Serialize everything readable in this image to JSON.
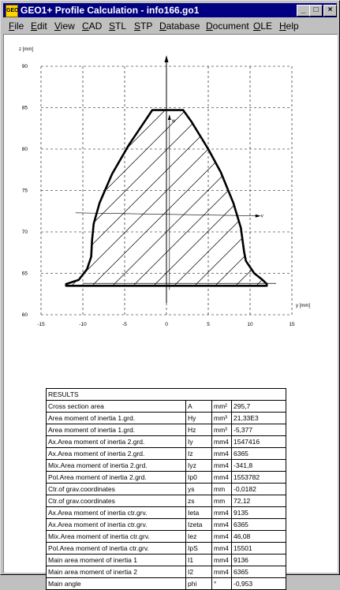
{
  "window": {
    "title": "GEO1+  Profile Calculation  -  info166.go1",
    "icon_text": "GEO",
    "buttons": {
      "minimize": "_",
      "maximize": "□",
      "close": "×"
    }
  },
  "menu": [
    {
      "label": "File",
      "u": "F",
      "rest": "ile"
    },
    {
      "label": "Edit",
      "u": "E",
      "rest": "dit"
    },
    {
      "label": "View",
      "u": "V",
      "rest": "iew"
    },
    {
      "label": "CAD",
      "u": "C",
      "rest": "AD"
    },
    {
      "label": "STL",
      "u": "S",
      "rest": "TL"
    },
    {
      "label": "STP",
      "u": "S",
      "rest": "TP"
    },
    {
      "label": "Database",
      "u": "D",
      "rest": "atabase"
    },
    {
      "label": "Document",
      "u": "D",
      "rest": "ocument"
    },
    {
      "label": "OLE",
      "u": "O",
      "rest": "LE"
    },
    {
      "label": "Help",
      "u": "H",
      "rest": "elp"
    }
  ],
  "plot": {
    "z_axis_label": "z [mm]",
    "y_axis_label": "y [mm]",
    "w_label": "w",
    "v_label": "v",
    "y_ticks": [
      "-15",
      "-10",
      "-5",
      "0",
      "5",
      "10",
      "15"
    ],
    "z_ticks": [
      "60",
      "65",
      "70",
      "75",
      "80",
      "85",
      "90"
    ],
    "y_range": [
      -15,
      15
    ],
    "z_range": [
      60,
      90
    ],
    "grid": "dashed",
    "profile_outline": [
      [
        -12,
        63.5
      ],
      [
        -12,
        63.7
      ],
      [
        -10.5,
        64.2
      ],
      [
        -9.5,
        65.5
      ],
      [
        -9,
        67
      ],
      [
        -8.9,
        69
      ],
      [
        -8.7,
        71
      ],
      [
        -8,
        73.5
      ],
      [
        -6.5,
        77
      ],
      [
        -4.5,
        80.5
      ],
      [
        -2.5,
        83.5
      ],
      [
        -1.7,
        84.7
      ],
      [
        2,
        84.7
      ],
      [
        3,
        83.3
      ],
      [
        5,
        80
      ],
      [
        6.5,
        77.2
      ],
      [
        8,
        73.5
      ],
      [
        8.9,
        70.5
      ],
      [
        9.3,
        67.5
      ],
      [
        9.5,
        66.5
      ],
      [
        10.5,
        65
      ],
      [
        11.5,
        64.2
      ],
      [
        12,
        63.7
      ],
      [
        12,
        63.5
      ]
    ],
    "principal_axes": {
      "angle_deg": -0.953,
      "center": [
        -0.0182,
        72.12
      ]
    }
  },
  "results": {
    "header": "RESULTS",
    "rows": [
      {
        "name": "Cross section area",
        "symbol": "A",
        "unit": "mm²",
        "value": "295,7"
      },
      {
        "name": "Area moment of inertia 1.grd.",
        "symbol": "Hy",
        "unit": "mm³",
        "value": "21,33E3"
      },
      {
        "name": "Area moment of inertia 1.grd.",
        "symbol": "Hz",
        "unit": "mm³",
        "value": "-5,377"
      },
      {
        "name": "Ax.Area moment of inertia 2.grd.",
        "symbol": "Iy",
        "unit": "mm4",
        "value": "1547416"
      },
      {
        "name": "Ax.Area moment of inertia 2.grd.",
        "symbol": "Iz",
        "unit": "mm4",
        "value": "6365"
      },
      {
        "name": "Mix.Area moment of inertia 2.grd.",
        "symbol": "Iyz",
        "unit": "mm4",
        "value": "-341,8"
      },
      {
        "name": "Pol.Area moment of inertia 2.grd.",
        "symbol": "Ip0",
        "unit": "mm4",
        "value": "1553782"
      },
      {
        "name": "Ctr.of grav.coordinates",
        "symbol": "ys",
        "unit": "mm",
        "value": "-0,0182"
      },
      {
        "name": "Ctr.of grav.coordinates",
        "symbol": "zs",
        "unit": "mm",
        "value": "72,12"
      },
      {
        "name": "Ax.Area moment of inertia ctr.grv.",
        "symbol": "Ieta",
        "unit": "mm4",
        "value": "9135"
      },
      {
        "name": "Ax.Area moment of inertia ctr.grv.",
        "symbol": "Izeta",
        "unit": "mm4",
        "value": "6365"
      },
      {
        "name": "Mix.Area moment of inertia ctr.grv.",
        "symbol": "Iez",
        "unit": "mm4",
        "value": "46,08"
      },
      {
        "name": "Pol.Area moment of inertia ctr.grv.",
        "symbol": "IpS",
        "unit": "mm4",
        "value": "15501"
      },
      {
        "name": "Main area moment of inertia 1",
        "symbol": "I1",
        "unit": "mm4",
        "value": "9136"
      },
      {
        "name": "Main area moment of inertia 2",
        "symbol": "I2",
        "unit": "mm4",
        "value": "6365"
      },
      {
        "name": "Main angle",
        "symbol": "phi",
        "unit": "°",
        "value": "-0,953"
      }
    ]
  }
}
